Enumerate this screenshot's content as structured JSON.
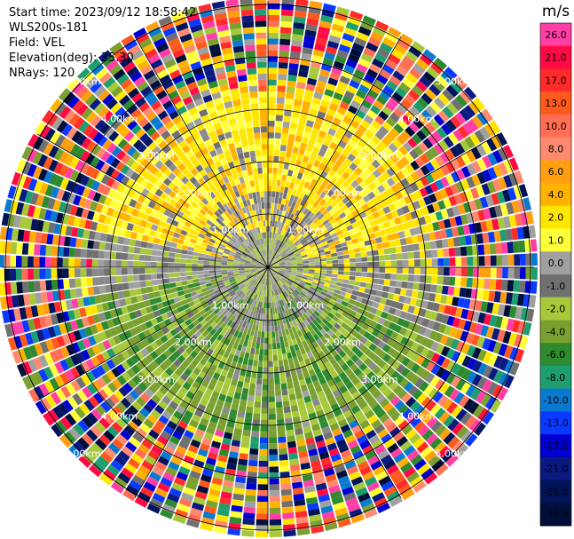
{
  "header": {
    "start_time": "Start time: 2023/09/12 18:58:42",
    "instrument": "WLS200s-181",
    "field": "Field: VEL",
    "elevation": "Elevation(deg): 35.30",
    "nrays": "NRays: 120"
  },
  "range_ring_labels": [
    "1.00km",
    "2.00km",
    "3.00km",
    "4.00km",
    "5.00km"
  ],
  "colorbar": {
    "unit": "m/s",
    "ticks": [
      "26.0",
      "21.0",
      "17.0",
      "13.0",
      "10.0",
      "8.0",
      "6.0",
      "4.0",
      "2.0",
      "1.0",
      "0.0",
      "-1.0",
      "-2.0",
      "-4.0",
      "-6.0",
      "-8.0",
      "-10.0",
      "-13.0",
      "-17.0",
      "-21.0",
      "-26.0",
      "-30.0"
    ],
    "colors": [
      "#ff3fa6",
      "#ff0a45",
      "#ff2a2a",
      "#ff5a1e",
      "#ff6e55",
      "#ff8a70",
      "#ff9e0f",
      "#ffb300",
      "#ffe600",
      "#ffff3a",
      "#a0a0a0",
      "#707070",
      "#a6c83a",
      "#7aa030",
      "#2e8a2e",
      "#1e9e6e",
      "#0a7ad0",
      "#0a3aff",
      "#0000d0",
      "#0a1a80",
      "#00145a",
      "#000e3a"
    ]
  }
}
